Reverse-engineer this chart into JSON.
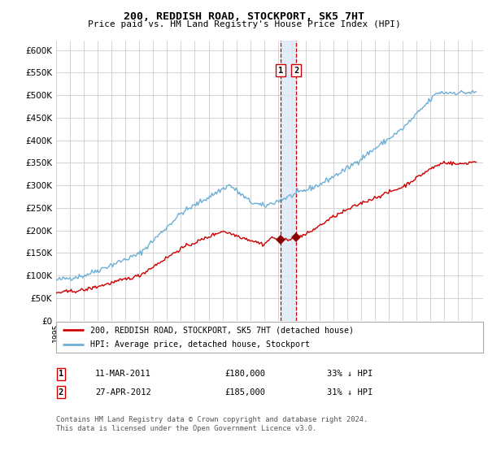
{
  "title": "200, REDDISH ROAD, STOCKPORT, SK5 7HT",
  "subtitle": "Price paid vs. HM Land Registry's House Price Index (HPI)",
  "legend_line1": "200, REDDISH ROAD, STOCKPORT, SK5 7HT (detached house)",
  "legend_line2": "HPI: Average price, detached house, Stockport",
  "footer": "Contains HM Land Registry data © Crown copyright and database right 2024.\nThis data is licensed under the Open Government Licence v3.0.",
  "annotation1": {
    "label": "1",
    "date": "11-MAR-2011",
    "price": "£180,000",
    "pct": "33% ↓ HPI",
    "x_year": 2011.19
  },
  "annotation2": {
    "label": "2",
    "date": "27-APR-2012",
    "price": "£185,000",
    "pct": "31% ↓ HPI",
    "x_year": 2012.32
  },
  "hpi_color": "#6dafd7",
  "price_color": "#cc0000",
  "marker_color": "#8b0000",
  "annotation_shade_color": "#dce9f5",
  "dashed_line_color": "#cc0000",
  "ylim": [
    0,
    620000
  ],
  "yticks": [
    0,
    50000,
    100000,
    150000,
    200000,
    250000,
    300000,
    350000,
    400000,
    450000,
    500000,
    550000,
    600000
  ],
  "xlim_start": 1995.0,
  "xlim_end": 2025.8,
  "background_color": "#ffffff",
  "grid_color": "#cccccc"
}
